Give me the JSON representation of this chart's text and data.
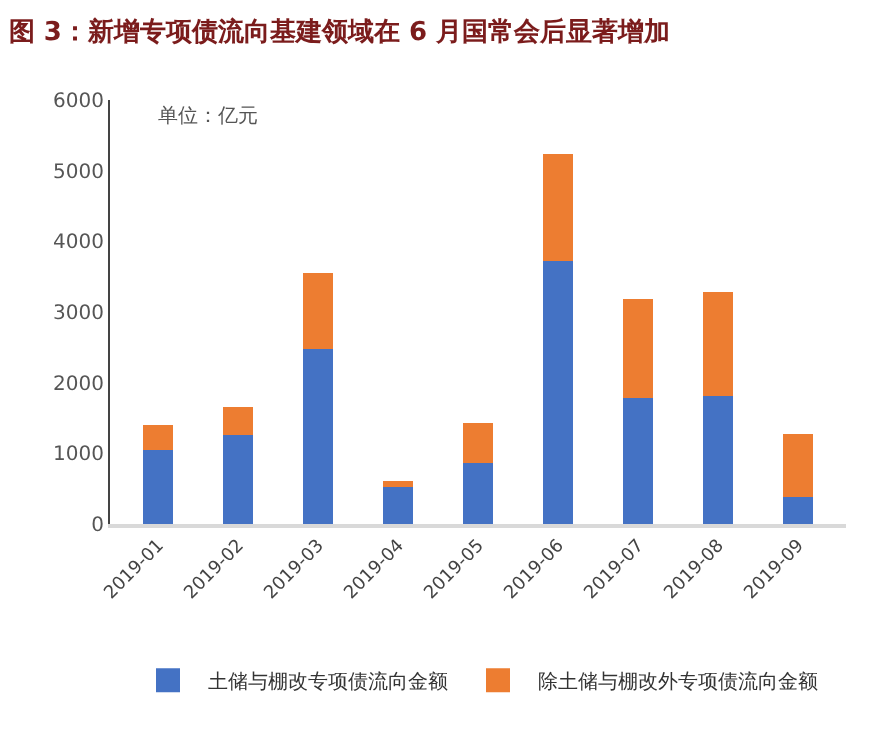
{
  "chart_data": {
    "type": "bar",
    "stacked": true,
    "title": "图 3：新增专项债流向基建领域在 6 月国常会后显著增加",
    "annotations": [
      "单位：亿元"
    ],
    "categories": [
      "2019-01",
      "2019-02",
      "2019-03",
      "2019-04",
      "2019-05",
      "2019-06",
      "2019-07",
      "2019-08",
      "2019-09"
    ],
    "series": [
      {
        "name": "土储与棚改专项债流向金额",
        "color": "#4472c4",
        "values": [
          1050,
          1260,
          2470,
          520,
          870,
          3720,
          1780,
          1810,
          380
        ]
      },
      {
        "name": "除土储与棚改外专项债流向金额",
        "color": "#ed7d31",
        "values": [
          350,
          400,
          1080,
          95,
          560,
          1520,
          1400,
          1470,
          900
        ]
      }
    ],
    "ylim": [
      0,
      6000
    ],
    "yticks": [
      0,
      1000,
      2000,
      3000,
      4000,
      5000,
      6000
    ],
    "grid": false,
    "legend": "bottom"
  }
}
